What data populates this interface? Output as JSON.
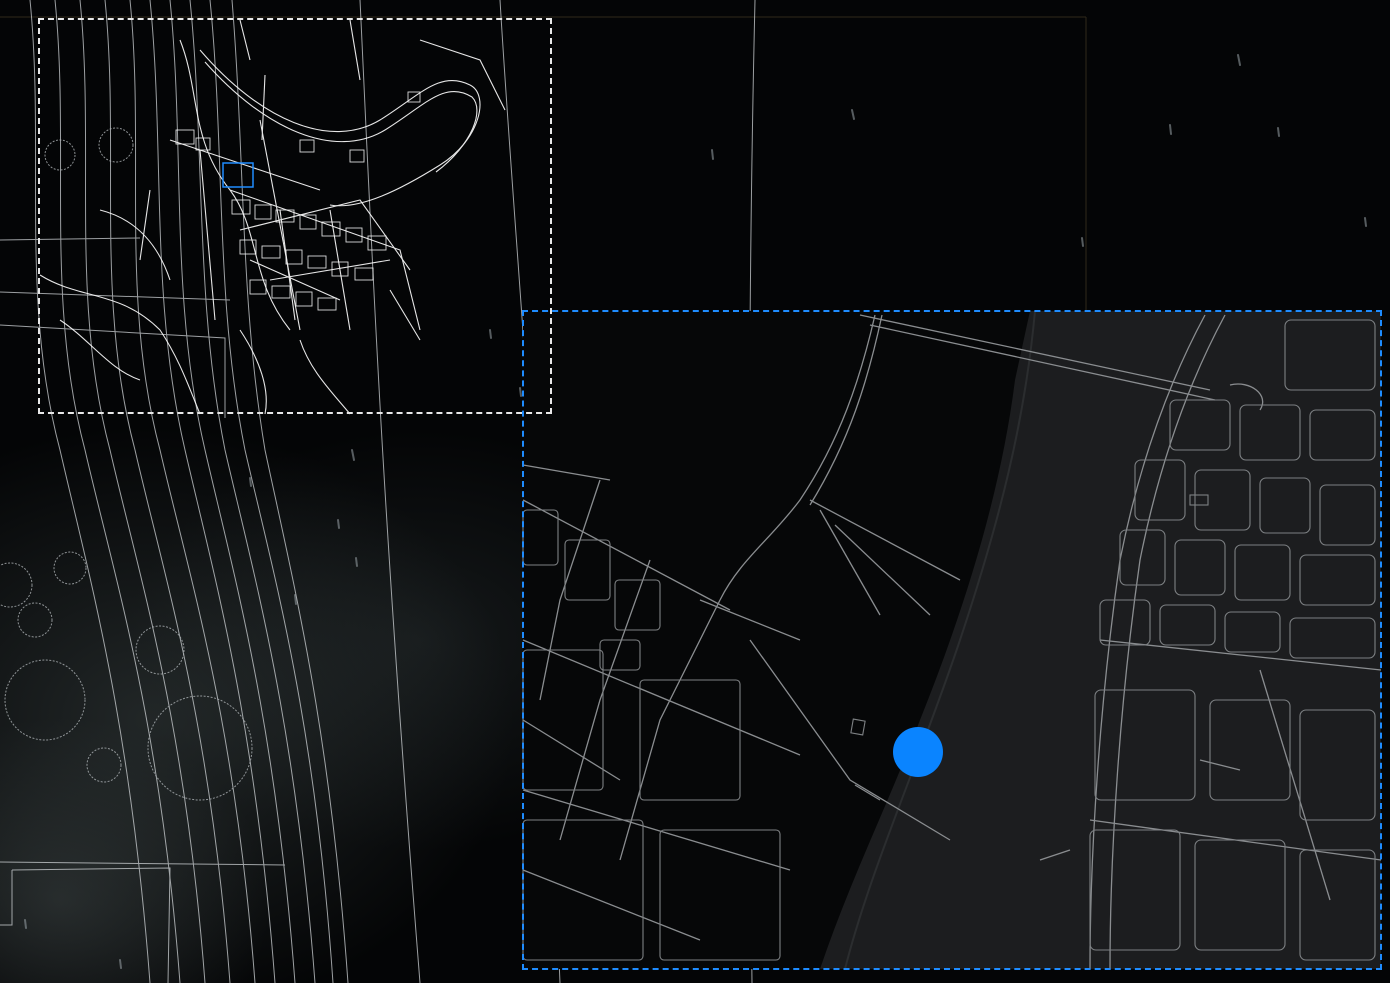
{
  "map": {
    "overview_frame_color": "#e8e8e8",
    "detail_frame_color": "#1e8cff",
    "location_marker_color": "#0a84ff",
    "background_color": "#040506",
    "contour_color": "#cfd3d6",
    "street_color": "#ffffff",
    "detail_street_color": "#8a8d90",
    "icons": [
      "location-marker-icon"
    ],
    "labels": []
  }
}
